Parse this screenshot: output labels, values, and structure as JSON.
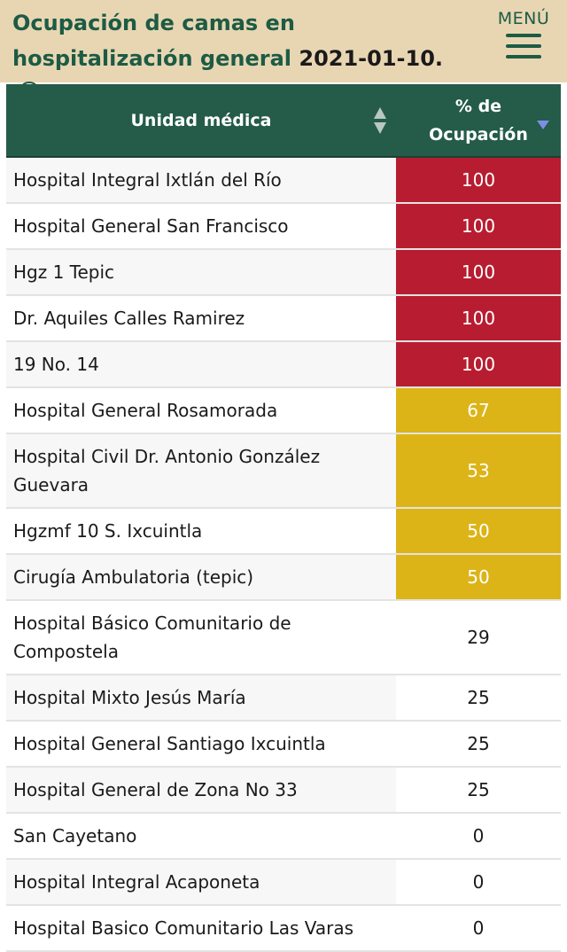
{
  "header": {
    "title_text": "Ocupación de camas en hospitalización general",
    "title_date": "2021-01-10.",
    "menu_label": "MENÚ",
    "info_icon": "info-circle-icon",
    "menu_icon": "hamburger-menu-icon"
  },
  "table": {
    "columns": {
      "unit": "Unidad médica",
      "pct_line1": "% de",
      "pct_line2": "Ocupación"
    },
    "colors": {
      "high": "#b81c30",
      "mid": "#dcb417",
      "low": "#ffffff",
      "header": "#245c49"
    },
    "rows": [
      {
        "name": "Hospital Integral Ixtlán del Río",
        "pct": "100",
        "level": "high"
      },
      {
        "name": "Hospital General San Francisco",
        "pct": "100",
        "level": "high"
      },
      {
        "name": "Hgz 1 Tepic",
        "pct": "100",
        "level": "high"
      },
      {
        "name": "Dr. Aquiles Calles Ramirez",
        "pct": "100",
        "level": "high"
      },
      {
        "name": "19 No. 14",
        "pct": "100",
        "level": "high"
      },
      {
        "name": "Hospital General Rosamorada",
        "pct": "67",
        "level": "mid"
      },
      {
        "name": "Hospital Civil Dr. Antonio González Guevara",
        "pct": "53",
        "level": "mid"
      },
      {
        "name": "Hgzmf 10 S. Ixcuintla",
        "pct": "50",
        "level": "mid"
      },
      {
        "name": "Cirugía Ambulatoria (tepic)",
        "pct": "50",
        "level": "mid"
      },
      {
        "name": "Hospital Básico Comunitario de Compostela",
        "pct": "29",
        "level": "low"
      },
      {
        "name": "Hospital Mixto Jesús María",
        "pct": "25",
        "level": "low"
      },
      {
        "name": "Hospital General Santiago Ixcuintla",
        "pct": "25",
        "level": "low"
      },
      {
        "name": "Hospital General de Zona No 33",
        "pct": "25",
        "level": "low"
      },
      {
        "name": "San Cayetano",
        "pct": "0",
        "level": "low"
      },
      {
        "name": "Hospital Integral Acaponeta",
        "pct": "0",
        "level": "low"
      },
      {
        "name": "Hospital Basico Comunitario Las Varas",
        "pct": "0",
        "level": "low"
      }
    ]
  }
}
